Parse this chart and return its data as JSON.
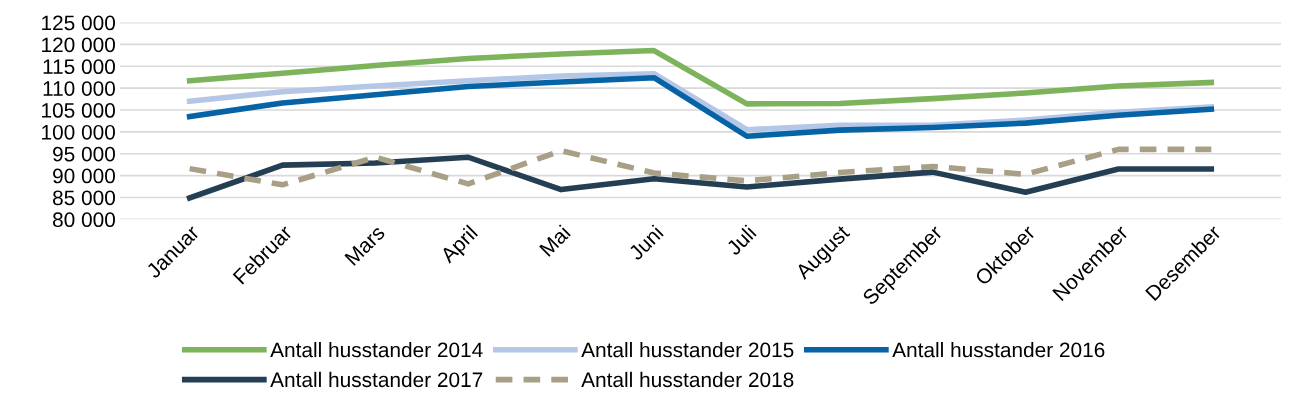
{
  "chart_data": {
    "type": "line",
    "categories": [
      "Januar",
      "Februar",
      "Mars",
      "April",
      "Mai",
      "Juni",
      "Juli",
      "August",
      "September",
      "Oktober",
      "November",
      "Desember"
    ],
    "series": [
      {
        "name": "Antall husstander 2014",
        "color": "#7db35a",
        "values": [
          111700,
          113400,
          115200,
          116800,
          117800,
          118600,
          106400,
          106500,
          107600,
          108900,
          110500,
          111300
        ]
      },
      {
        "name": "Antall husstander 2015",
        "color": "#b4c7e7",
        "values": [
          107000,
          109200,
          110500,
          111700,
          112800,
          113300,
          100500,
          101500,
          101500,
          102700,
          104500,
          105700
        ]
      },
      {
        "name": "Antall husstander 2016",
        "color": "#0563a6",
        "values": [
          103500,
          106600,
          108500,
          110400,
          111400,
          112400,
          99000,
          100400,
          101000,
          102000,
          103800,
          105200
        ]
      },
      {
        "name": "Antall husstander 2017",
        "color": "#243f53",
        "values": [
          84900,
          92400,
          92900,
          94200,
          86800,
          89300,
          87400,
          89200,
          90800,
          86200,
          91500,
          91500
        ]
      },
      {
        "name": "Antall husstander 2018",
        "color": "#a89f86",
        "line_style": "dashed",
        "values": [
          91600,
          87900,
          94200,
          88100,
          95700,
          90600,
          88800,
          90700,
          92100,
          90300,
          96000,
          96000
        ]
      }
    ],
    "ylim": [
      80000,
      125000
    ],
    "yticks": [
      {
        "value": 80000,
        "label": "80 000"
      },
      {
        "value": 85000,
        "label": "85 000"
      },
      {
        "value": 90000,
        "label": "90 000"
      },
      {
        "value": 95000,
        "label": "95 000"
      },
      {
        "value": 100000,
        "label": "100 000"
      },
      {
        "value": 105000,
        "label": "105 000"
      },
      {
        "value": 110000,
        "label": "110 000"
      },
      {
        "value": 115000,
        "label": "115 000"
      },
      {
        "value": 120000,
        "label": "120 000"
      },
      {
        "value": 125000,
        "label": "125 000"
      }
    ],
    "grid": "y",
    "legend": "bottom",
    "line_style": "solid",
    "marker": "none"
  }
}
